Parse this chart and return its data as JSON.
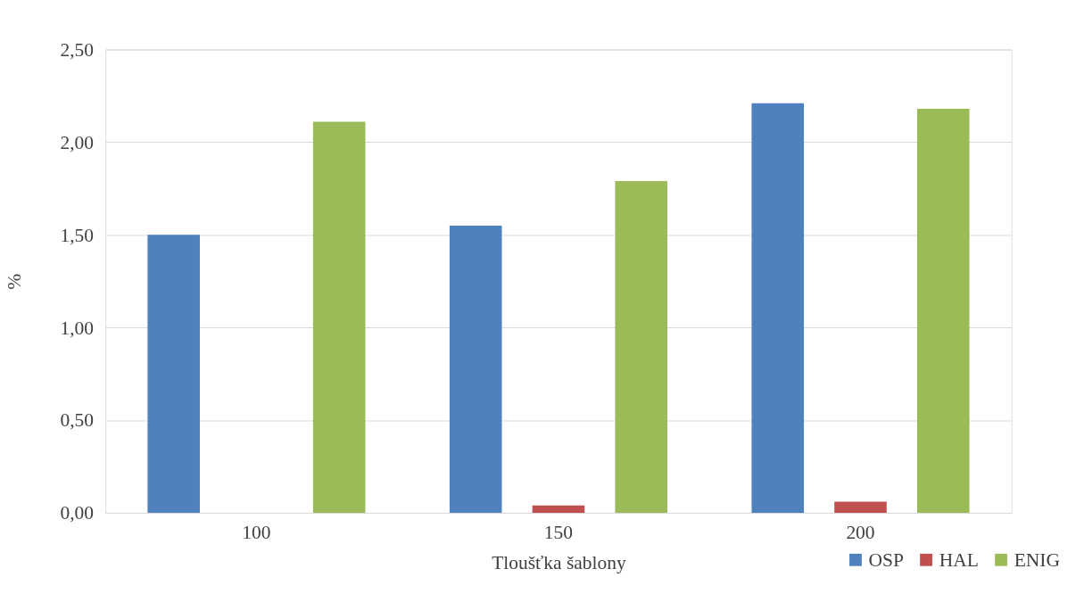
{
  "chart_data": {
    "type": "bar",
    "xlabel": "Tloušťka šablony",
    "ylabel": "%",
    "categories": [
      "100",
      "150",
      "200"
    ],
    "series": [
      {
        "name": "OSP",
        "color": "#4f81bd",
        "values": [
          1.5,
          1.55,
          2.21
        ]
      },
      {
        "name": "HAL",
        "color": "#c0504d",
        "values": [
          0,
          0.04,
          0.06
        ]
      },
      {
        "name": "ENIG",
        "color": "#9bbb59",
        "values": [
          2.11,
          1.79,
          2.18
        ]
      }
    ],
    "ylim": [
      0,
      2.5
    ],
    "yticks": [
      {
        "value": 0,
        "label": "0,00"
      },
      {
        "value": 0.5,
        "label": "0,50"
      },
      {
        "value": 1,
        "label": "1,00"
      },
      {
        "value": 1.5,
        "label": "1,50"
      },
      {
        "value": 2,
        "label": "2,00"
      },
      {
        "value": 2.5,
        "label": "2,50"
      }
    ],
    "grid": "y",
    "legend": "bottom right"
  }
}
